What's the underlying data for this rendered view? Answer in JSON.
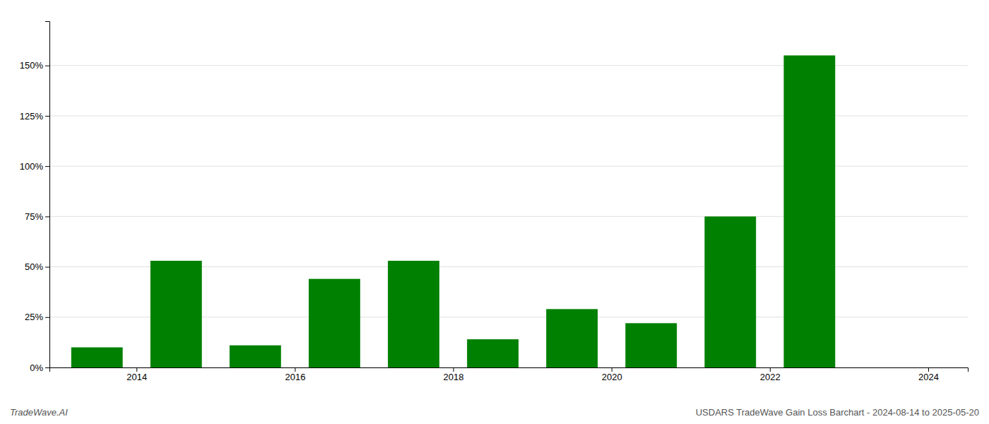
{
  "chart_data": {
    "type": "bar",
    "x": [
      2014,
      2015,
      2016,
      2017,
      2018,
      2019,
      2020,
      2021,
      2022,
      2023,
      2024
    ],
    "values": [
      0.1,
      0.53,
      0.11,
      0.44,
      0.53,
      0.14,
      0.29,
      0.22,
      0.75,
      1.55,
      0.0
    ],
    "color": "#008000",
    "xlim": [
      2013.4,
      2025.0
    ],
    "xticks": [
      {
        "value": 2014.5,
        "label": "2014"
      },
      {
        "value": 2016.5,
        "label": "2016"
      },
      {
        "value": 2018.5,
        "label": "2018"
      },
      {
        "value": 2020.5,
        "label": "2020"
      },
      {
        "value": 2022.5,
        "label": "2022"
      },
      {
        "value": 2024.5,
        "label": "2024"
      }
    ],
    "ylim": [
      0,
      1.72
    ],
    "yticks": [
      {
        "value": 0,
        "label": "0%"
      },
      {
        "value": 0.25,
        "label": "25%"
      },
      {
        "value": 0.5,
        "label": "50%"
      },
      {
        "value": 0.75,
        "label": "75%"
      },
      {
        "value": 1.0,
        "label": "100%"
      },
      {
        "value": 1.25,
        "label": "125%"
      },
      {
        "value": 1.5,
        "label": "150%"
      }
    ],
    "grid": true,
    "annotations": [
      "TradeWave.AI",
      "USDARS TradeWave Gain Loss Barchart - 2024-08-14 to 2025-05-20"
    ]
  }
}
